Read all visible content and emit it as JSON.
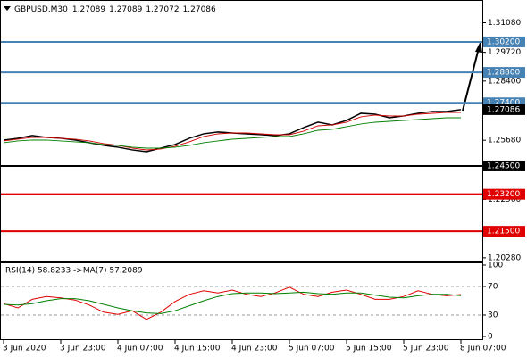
{
  "chart_data": [
    {
      "type": "line",
      "symbol": "GBPUSD,M30",
      "quote": [
        1.27089,
        1.27089,
        1.27072,
        1.27086
      ],
      "categories": [
        "3 Jun 2020",
        null,
        null,
        null,
        "3 Jun 23:00",
        null,
        null,
        null,
        "4 Jun 07:00",
        null,
        null,
        null,
        "4 Jun 15:00",
        null,
        null,
        null,
        "4 Jun 23:00",
        null,
        null,
        null,
        "5 Jun 07:00",
        null,
        null,
        null,
        "5 Jun 15:00",
        null,
        null,
        null,
        "5 Jun 23:00",
        null,
        null,
        null,
        "8 Jun 07:00"
      ],
      "series": [
        {
          "color": "#000000",
          "values": [
            1.2569,
            1.25772,
            1.25895,
            1.25813,
            1.25772,
            1.2569,
            1.25567,
            1.25444,
            1.25362,
            1.25239,
            1.25157,
            1.25321,
            1.25485,
            1.25772,
            1.25977,
            1.26059,
            1.26018,
            1.25977,
            1.25936,
            1.25895,
            1.25977,
            1.26264,
            1.2651,
            1.26387,
            1.26592,
            1.2692,
            1.26879,
            1.26715,
            1.26797,
            1.2692,
            1.27002,
            1.27002,
            1.27086
          ]
        },
        {
          "color": "#d00000",
          "values": [
            1.25649,
            1.25731,
            1.25813,
            1.25813,
            1.25772,
            1.25731,
            1.25649,
            1.25526,
            1.25444,
            1.25321,
            1.25239,
            1.2528,
            1.25403,
            1.25608,
            1.25854,
            1.25977,
            1.26018,
            1.26018,
            1.25977,
            1.25936,
            1.25936,
            1.261,
            1.26346,
            1.26387,
            1.2651,
            1.26756,
            1.26838,
            1.26797,
            1.26797,
            1.26879,
            1.2692,
            1.26961,
            1.26961
          ]
        },
        {
          "color": "#008000",
          "values": [
            1.25567,
            1.25649,
            1.2569,
            1.2569,
            1.25649,
            1.25608,
            1.25567,
            1.25485,
            1.25444,
            1.25362,
            1.25321,
            1.25321,
            1.25362,
            1.25444,
            1.25567,
            1.25649,
            1.25731,
            1.25772,
            1.25813,
            1.25854,
            1.25854,
            1.25977,
            1.26141,
            1.26182,
            1.26305,
            1.26428,
            1.2651,
            1.26551,
            1.26592,
            1.26633,
            1.26674,
            1.26715,
            1.26715
          ]
        }
      ],
      "ylim": [
        1.2007,
        1.3192
      ],
      "yticks": [
        {
          "value": 1.3108,
          "label": "1.31080"
        },
        {
          "value": 1.2972,
          "label": "1.29720"
        },
        {
          "value": 1.284,
          "label": "1.28400"
        },
        {
          "value": 1.2568,
          "label": "1.25680"
        },
        {
          "value": 1.2296,
          "label": "1.22960"
        },
        {
          "value": 1.2028,
          "label": "1.20280"
        }
      ],
      "levels": [
        {
          "value": 1.302,
          "label": "1.30200",
          "color": "#4682b4"
        },
        {
          "value": 1.288,
          "label": "1.28800",
          "color": "#4682b4"
        },
        {
          "value": 1.274,
          "label": "1.27400",
          "color": "#4682b4"
        },
        {
          "value": 1.245,
          "label": "1.24500",
          "color": "#000000"
        },
        {
          "value": 1.232,
          "label": "1.23200",
          "color": "#e00000"
        },
        {
          "value": 1.215,
          "label": "1.21500",
          "color": "#e00000"
        }
      ],
      "last_price": {
        "value": 1.27086,
        "label": "1.27086",
        "color": "#000000"
      }
    },
    {
      "type": "line",
      "title": "RSI(14) 58.8233 ->MA(7) 57.2089",
      "series": [
        {
          "color": "#e00000",
          "values": [
            46,
            40,
            52,
            56,
            54,
            51,
            44,
            34,
            31,
            36,
            24,
            34,
            49,
            59,
            64,
            61,
            65,
            59,
            56,
            61,
            69,
            59,
            56,
            62,
            65,
            59,
            52,
            52,
            56,
            64,
            59,
            57,
            58.8233
          ]
        },
        {
          "color": "#008000",
          "values": [
            45,
            44,
            46,
            50,
            53,
            53,
            50,
            45,
            40,
            36,
            33,
            32,
            36,
            43,
            50,
            56,
            60,
            61,
            61,
            60,
            61,
            62,
            60,
            59,
            61,
            61,
            58,
            55,
            54,
            57,
            59,
            59,
            57.2089
          ]
        }
      ],
      "ylim": [
        0,
        100
      ],
      "yticks": [
        100,
        70,
        30,
        0
      ],
      "dashed_levels": [
        30,
        70
      ]
    }
  ]
}
